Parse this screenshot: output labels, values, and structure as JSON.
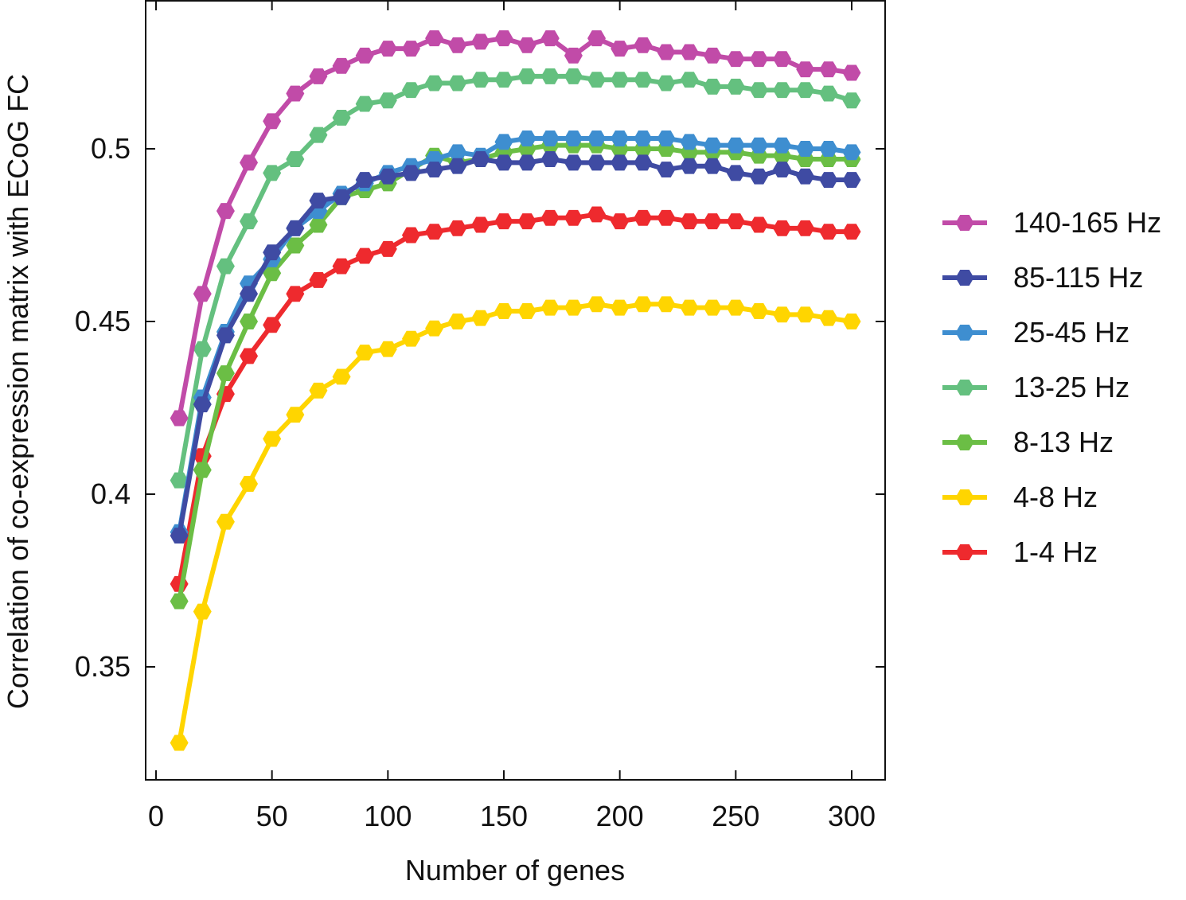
{
  "chart_data": {
    "type": "line",
    "title": "",
    "xlabel": "Number of genes",
    "ylabel": "Correlation of co-expression matrix with ECoG FC",
    "xlim": [
      -5,
      315
    ],
    "ylim": [
      0.3235,
      0.5415
    ],
    "xticks": [
      0,
      50,
      100,
      150,
      200,
      250,
      300
    ],
    "xtick_labels": [
      "0",
      "50",
      "100",
      "150",
      "200",
      "250",
      "300"
    ],
    "yticks": [
      0.35,
      0.4,
      0.45,
      0.5
    ],
    "ytick_labels": [
      "0.35",
      "0.4",
      "0.45",
      "0.5"
    ],
    "grid": false,
    "legend_position": "right",
    "marker": "hexagon",
    "x": [
      10,
      20,
      30,
      40,
      50,
      60,
      70,
      80,
      90,
      100,
      110,
      120,
      130,
      140,
      150,
      160,
      170,
      180,
      190,
      200,
      210,
      220,
      230,
      240,
      250,
      260,
      270,
      280,
      290,
      300
    ],
    "series": [
      {
        "name": "1-4 Hz",
        "color": "#EE2A2E",
        "values": [
          0.374,
          0.411,
          0.429,
          0.44,
          0.449,
          0.458,
          0.462,
          0.466,
          0.469,
          0.471,
          0.475,
          0.476,
          0.477,
          0.478,
          0.479,
          0.479,
          0.48,
          0.48,
          0.481,
          0.479,
          0.48,
          0.48,
          0.479,
          0.479,
          0.479,
          0.478,
          0.477,
          0.477,
          0.476,
          0.476
        ]
      },
      {
        "name": "4-8 Hz",
        "color": "#FFD500",
        "values": [
          0.328,
          0.366,
          0.392,
          0.403,
          0.416,
          0.423,
          0.43,
          0.434,
          0.441,
          0.442,
          0.445,
          0.448,
          0.45,
          0.451,
          0.453,
          0.453,
          0.454,
          0.454,
          0.455,
          0.454,
          0.455,
          0.455,
          0.454,
          0.454,
          0.454,
          0.453,
          0.452,
          0.452,
          0.451,
          0.45
        ]
      },
      {
        "name": "8-13 Hz",
        "color": "#6BBE45",
        "values": [
          0.369,
          0.407,
          0.435,
          0.45,
          0.464,
          0.472,
          0.478,
          0.486,
          0.488,
          0.49,
          0.494,
          0.498,
          0.496,
          0.497,
          0.499,
          0.5,
          0.501,
          0.501,
          0.501,
          0.5,
          0.5,
          0.5,
          0.499,
          0.499,
          0.499,
          0.498,
          0.498,
          0.497,
          0.497,
          0.497
        ]
      },
      {
        "name": "13-25 Hz",
        "color": "#64C07F",
        "values": [
          0.404,
          0.442,
          0.466,
          0.479,
          0.493,
          0.497,
          0.504,
          0.509,
          0.513,
          0.514,
          0.517,
          0.519,
          0.519,
          0.52,
          0.52,
          0.521,
          0.521,
          0.521,
          0.52,
          0.52,
          0.52,
          0.519,
          0.52,
          0.518,
          0.518,
          0.517,
          0.517,
          0.517,
          0.516,
          0.514
        ]
      },
      {
        "name": "25-45 Hz",
        "color": "#3E8ED0",
        "values": [
          0.389,
          0.428,
          0.447,
          0.461,
          0.468,
          0.477,
          0.482,
          0.487,
          0.49,
          0.493,
          0.495,
          0.497,
          0.499,
          0.498,
          0.502,
          0.503,
          0.503,
          0.503,
          0.503,
          0.503,
          0.503,
          0.503,
          0.502,
          0.501,
          0.501,
          0.501,
          0.501,
          0.5,
          0.5,
          0.499
        ]
      },
      {
        "name": "85-115 Hz",
        "color": "#3F4BA3",
        "values": [
          0.388,
          0.426,
          0.446,
          0.458,
          0.47,
          0.477,
          0.485,
          0.486,
          0.491,
          0.492,
          0.493,
          0.494,
          0.495,
          0.497,
          0.496,
          0.496,
          0.497,
          0.496,
          0.496,
          0.496,
          0.496,
          0.494,
          0.495,
          0.495,
          0.493,
          0.492,
          0.494,
          0.492,
          0.491,
          0.491
        ]
      },
      {
        "name": "140-165 Hz",
        "color": "#C14BA8",
        "values": [
          0.422,
          0.458,
          0.482,
          0.496,
          0.508,
          0.516,
          0.521,
          0.524,
          0.527,
          0.529,
          0.529,
          0.532,
          0.53,
          0.531,
          0.532,
          0.53,
          0.532,
          0.527,
          0.532,
          0.529,
          0.53,
          0.528,
          0.528,
          0.527,
          0.526,
          0.526,
          0.526,
          0.523,
          0.523,
          0.522
        ]
      }
    ],
    "legend_order": [
      "140-165 Hz",
      "85-115 Hz",
      "25-45 Hz",
      "13-25 Hz",
      "8-13 Hz",
      "4-8 Hz",
      "1-4 Hz"
    ]
  }
}
